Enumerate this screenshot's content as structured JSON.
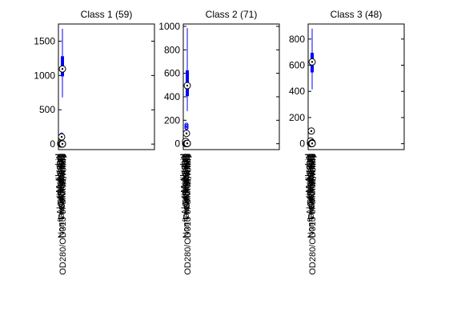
{
  "chart_data": [
    {
      "type": "boxplot",
      "title": "Class 1 (59)",
      "ylim": [
        -80,
        1750
      ],
      "yticks": [
        0,
        500,
        1000,
        1500
      ],
      "xtick_labels": [
        "Alcohol",
        "Malic acid",
        "Ash",
        "Alcalinity of ash",
        "Magnesium",
        "Total phenols",
        "Flavanoids",
        "Nonflavanoid phenols",
        "Proanthocyanins",
        "Color intensity",
        "Hue",
        "OD280/OD315 of diluted wines",
        "Proline"
      ],
      "boxes": [
        {
          "name": "Alcohol",
          "min": 12.9,
          "q1": 13.4,
          "median": 13.75,
          "q3": 14.1,
          "max": 14.8,
          "mean": 13.7,
          "outliers": []
        },
        {
          "name": "Malic acid",
          "min": 1.4,
          "q1": 1.7,
          "median": 1.9,
          "q3": 2.1,
          "max": 4.0,
          "mean": 2.0,
          "outliers": []
        },
        {
          "name": "Ash",
          "min": 2.0,
          "q1": 2.3,
          "median": 2.45,
          "q3": 2.6,
          "max": 3.2,
          "mean": 2.45,
          "outliers": []
        },
        {
          "name": "Alcalinity of ash",
          "min": 11,
          "q1": 16,
          "median": 17,
          "q3": 18.5,
          "max": 25,
          "mean": 17,
          "outliers": []
        },
        {
          "name": "Magnesium",
          "min": 89,
          "q1": 98,
          "median": 105,
          "q3": 114,
          "max": 132,
          "mean": 106,
          "outliers": [
            139
          ]
        },
        {
          "name": "Total phenols",
          "min": 2.2,
          "q1": 2.6,
          "median": 2.8,
          "q3": 3.0,
          "max": 3.9,
          "mean": 2.85,
          "outliers": []
        },
        {
          "name": "Flavanoids",
          "min": 2.2,
          "q1": 2.7,
          "median": 2.95,
          "q3": 3.2,
          "max": 3.9,
          "mean": 2.98,
          "outliers": []
        },
        {
          "name": "Nonflavanoid phenols",
          "min": 0.17,
          "q1": 0.26,
          "median": 0.29,
          "q3": 0.32,
          "max": 0.5,
          "mean": 0.29,
          "outliers": []
        },
        {
          "name": "Proanthocyanins",
          "min": 1.25,
          "q1": 1.64,
          "median": 2.0,
          "q3": 2.1,
          "max": 2.96,
          "mean": 1.9,
          "outliers": []
        },
        {
          "name": "Color intensity",
          "min": 3.5,
          "q1": 4.5,
          "median": 5.4,
          "q3": 6.2,
          "max": 8.9,
          "mean": 5.5,
          "outliers": []
        },
        {
          "name": "Hue",
          "min": 0.82,
          "q1": 1.0,
          "median": 1.07,
          "q3": 1.13,
          "max": 1.28,
          "mean": 1.06,
          "outliers": []
        },
        {
          "name": "OD280/OD315 of diluted wines",
          "min": 2.51,
          "q1": 2.87,
          "median": 3.0,
          "q3": 3.3,
          "max": 4.0,
          "mean": 3.16,
          "outliers": []
        },
        {
          "name": "Proline",
          "min": 680,
          "q1": 987,
          "median": 1095,
          "q3": 1280,
          "max": 1680,
          "mean": 1116,
          "outliers": []
        }
      ]
    },
    {
      "type": "boxplot",
      "title": "Class 2 (71)",
      "ylim": [
        -50,
        1020
      ],
      "yticks": [
        0,
        200,
        400,
        600,
        800,
        1000
      ],
      "xtick_labels": [
        "Alcohol",
        "Malic acid",
        "Ash",
        "Alcalinity of ash",
        "Magnesium",
        "Total phenols",
        "Flavanoids",
        "Nonflavanoid phenols",
        "Proanthocyanins",
        "Color intensity",
        "Hue",
        "OD280/OD315 of diluted wines",
        "Proline"
      ],
      "boxes": [
        {
          "name": "Alcohol",
          "min": 11.0,
          "q1": 11.9,
          "median": 12.3,
          "q3": 12.5,
          "max": 13.9,
          "mean": 12.3,
          "outliers": []
        },
        {
          "name": "Malic acid",
          "min": 0.7,
          "q1": 1.3,
          "median": 1.6,
          "q3": 2.1,
          "max": 3.8,
          "mean": 1.9,
          "outliers": []
        },
        {
          "name": "Ash",
          "min": 1.7,
          "q1": 2.0,
          "median": 2.24,
          "q3": 2.4,
          "max": 3.0,
          "mean": 2.24,
          "outliers": []
        },
        {
          "name": "Alcalinity of ash",
          "min": 10.6,
          "q1": 18,
          "median": 20,
          "q3": 22,
          "max": 30,
          "mean": 20.2,
          "outliers": []
        },
        {
          "name": "Magnesium",
          "min": 70,
          "q1": 85,
          "median": 88,
          "q3": 99,
          "max": 118,
          "mean": 94.5,
          "outliers": [
            162,
            151,
            139,
            134
          ]
        },
        {
          "name": "Total phenols",
          "min": 1.1,
          "q1": 1.9,
          "median": 2.2,
          "q3": 2.6,
          "max": 3.5,
          "mean": 2.26,
          "outliers": []
        },
        {
          "name": "Flavanoids",
          "min": 0.6,
          "q1": 1.6,
          "median": 2.0,
          "q3": 2.4,
          "max": 3.7,
          "mean": 2.08,
          "outliers": [
            5.08
          ]
        },
        {
          "name": "Nonflavanoid phenols",
          "min": 0.13,
          "q1": 0.27,
          "median": 0.37,
          "q3": 0.43,
          "max": 0.66,
          "mean": 0.36,
          "outliers": []
        },
        {
          "name": "Proanthocyanins",
          "min": 0.4,
          "q1": 1.35,
          "median": 1.6,
          "q3": 1.9,
          "max": 2.9,
          "mean": 1.63,
          "outliers": [
            3.58
          ]
        },
        {
          "name": "Color intensity",
          "min": 1.3,
          "q1": 2.5,
          "median": 2.9,
          "q3": 3.5,
          "max": 6.0,
          "mean": 3.1,
          "outliers": []
        },
        {
          "name": "Hue",
          "min": 0.69,
          "q1": 0.93,
          "median": 1.04,
          "q3": 1.2,
          "max": 1.71,
          "mean": 1.06,
          "outliers": []
        },
        {
          "name": "OD280/OD315 of diluted wines",
          "min": 1.59,
          "q1": 2.5,
          "median": 2.8,
          "q3": 3.2,
          "max": 3.69,
          "mean": 2.79,
          "outliers": []
        },
        {
          "name": "Proline",
          "min": 278,
          "q1": 405,
          "median": 495,
          "q3": 625,
          "max": 985,
          "mean": 520,
          "outliers": []
        }
      ]
    },
    {
      "type": "boxplot",
      "title": "Class 3 (48)",
      "ylim": [
        -45,
        915
      ],
      "yticks": [
        0,
        200,
        400,
        600,
        800
      ],
      "xtick_labels": [
        "Alcohol",
        "Malic acid",
        "Ash",
        "Alcalinity of ash",
        "Magnesium",
        "Total phenols",
        "Flavanoids",
        "Nonflavanoid phenols",
        "Proanthocyanins",
        "Color intensity",
        "Hue",
        "OD280/OD315 of diluted wines",
        "Proline"
      ],
      "boxes": [
        {
          "name": "Alcohol",
          "min": 12.2,
          "q1": 12.8,
          "median": 13.2,
          "q3": 13.5,
          "max": 14.3,
          "mean": 13.15,
          "outliers": []
        },
        {
          "name": "Malic acid",
          "min": 1.2,
          "q1": 2.6,
          "median": 3.3,
          "q3": 4.4,
          "max": 5.7,
          "mean": 3.33,
          "outliers": []
        },
        {
          "name": "Ash",
          "min": 2.1,
          "q1": 2.3,
          "median": 2.4,
          "q3": 2.6,
          "max": 2.9,
          "mean": 2.44,
          "outliers": []
        },
        {
          "name": "Alcalinity of ash",
          "min": 17,
          "q1": 20,
          "median": 21,
          "q3": 23,
          "max": 27,
          "mean": 21.4,
          "outliers": []
        },
        {
          "name": "Magnesium",
          "min": 80,
          "q1": 89,
          "median": 97,
          "q3": 106,
          "max": 123,
          "mean": 99.3,
          "outliers": []
        },
        {
          "name": "Total phenols",
          "min": 0.98,
          "q1": 1.4,
          "median": 1.6,
          "q3": 1.8,
          "max": 2.8,
          "mean": 1.68,
          "outliers": []
        },
        {
          "name": "Flavanoids",
          "min": 0.34,
          "q1": 0.6,
          "median": 0.7,
          "q3": 0.9,
          "max": 1.6,
          "mean": 0.78,
          "outliers": []
        },
        {
          "name": "Nonflavanoid phenols",
          "min": 0.17,
          "q1": 0.4,
          "median": 0.47,
          "q3": 0.53,
          "max": 0.63,
          "mean": 0.45,
          "outliers": []
        },
        {
          "name": "Proanthocyanins",
          "min": 0.55,
          "q1": 0.9,
          "median": 1.1,
          "q3": 1.4,
          "max": 2.7,
          "mean": 1.15,
          "outliers": []
        },
        {
          "name": "Color intensity",
          "min": 3.85,
          "q1": 5.7,
          "median": 7.5,
          "q3": 9.2,
          "max": 13.0,
          "mean": 7.4,
          "outliers": []
        },
        {
          "name": "Hue",
          "min": 0.48,
          "q1": 0.59,
          "median": 0.67,
          "q3": 0.75,
          "max": 0.96,
          "mean": 0.68,
          "outliers": []
        },
        {
          "name": "OD280/OD315 of diluted wines",
          "min": 1.27,
          "q1": 1.5,
          "median": 1.66,
          "q3": 1.8,
          "max": 2.47,
          "mean": 1.68,
          "outliers": []
        },
        {
          "name": "Proline",
          "min": 415,
          "q1": 545,
          "median": 625,
          "q3": 695,
          "max": 880,
          "mean": 630,
          "outliers": []
        }
      ]
    }
  ],
  "colors": {
    "box": "#0000ff",
    "median_marker": "#000000",
    "axis": "#000000",
    "background": "#ffffff"
  }
}
